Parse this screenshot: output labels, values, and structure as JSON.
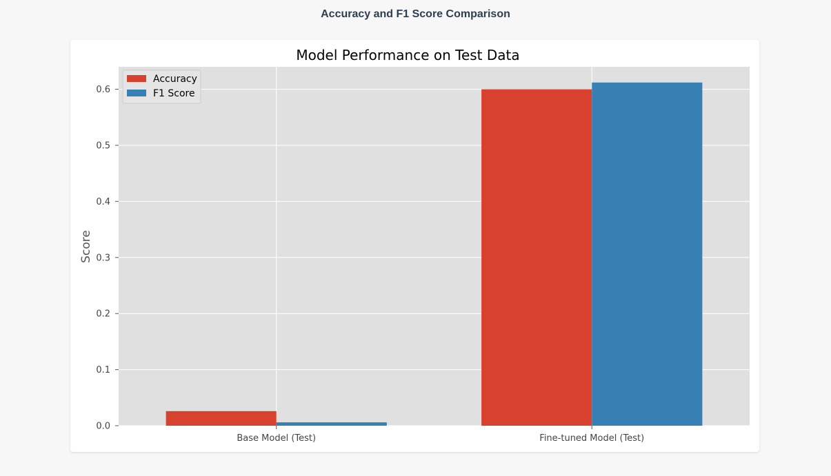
{
  "page": {
    "header": "Accuracy and F1 Score Comparison"
  },
  "colors": {
    "accuracy": "#d9412f",
    "f1": "#3680b3",
    "plot_background": "#e0e0e0",
    "grid": "#ffffff"
  },
  "chart_data": {
    "type": "bar",
    "title": "Model Performance on Test Data",
    "xlabel": "",
    "ylabel": "Score",
    "categories": [
      "Base Model (Test)",
      "Fine-tuned Model (Test)"
    ],
    "series": [
      {
        "name": "Accuracy",
        "values": [
          0.026,
          0.6
        ]
      },
      {
        "name": "F1 Score",
        "values": [
          0.006,
          0.612
        ]
      }
    ],
    "ylim": [
      0,
      0.64
    ],
    "yticks": [
      "0.0",
      "0.1",
      "0.2",
      "0.3",
      "0.4",
      "0.5",
      "0.6"
    ],
    "grid": true,
    "legend_position": "top-left",
    "style": "ggplot"
  }
}
